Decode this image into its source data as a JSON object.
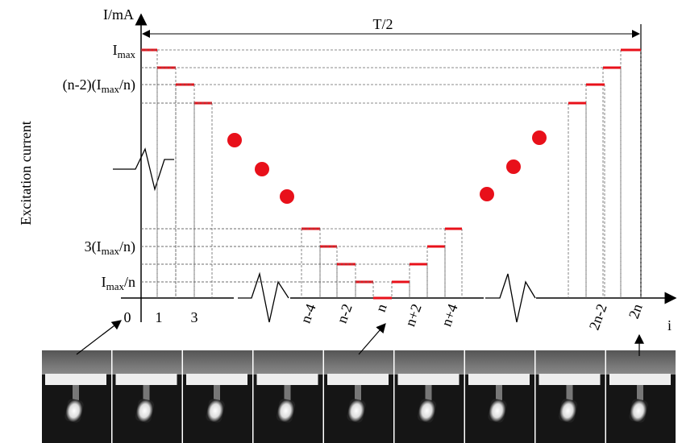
{
  "axis": {
    "y_title": "I/mA",
    "x_title": "i",
    "y_label": "Excitation current",
    "span": "T/2"
  },
  "y_labels": [
    [
      "I",
      "max"
    ],
    [
      "(n-2)(I",
      "max",
      "/n)"
    ],
    [
      "3(I",
      "max",
      "/n)"
    ],
    [
      "I",
      "max",
      "/n"
    ]
  ],
  "x_labels": [
    "0",
    "1",
    "3",
    "n-4",
    "n-2",
    "n",
    "n+2",
    "n+4",
    "2n-2",
    "2n"
  ]
}
